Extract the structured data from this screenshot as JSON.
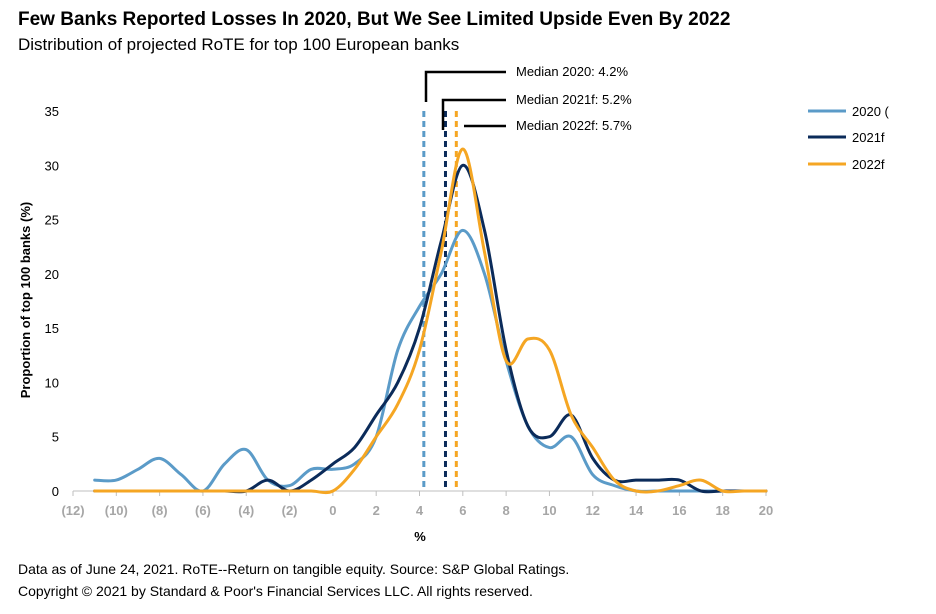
{
  "header": {
    "title": "Few Banks Reported Losses In 2020, But We See Limited Upside Even By 2022",
    "subtitle": "Distribution of projected RoTE for top 100 European banks"
  },
  "footer": {
    "note": "Data as of June 24, 2021. RoTE--Return on tangible equity. Source: S&P Global Ratings.",
    "copyright": "Copyright © 2021 by Standard & Poor's Financial Services LLC. All rights reserved."
  },
  "chart_data": {
    "type": "line",
    "title": "Few Banks Reported Losses In 2020, But We See Limited Upside Even By 2022",
    "subtitle": "Distribution of projected RoTE for top 100 European banks",
    "xlabel": "%",
    "ylabel": "Proportion of top 100 banks (%)",
    "xlim": [
      -12,
      20
    ],
    "ylim": [
      0,
      35
    ],
    "grid": false,
    "legend_position": "right",
    "x_ticks": [
      -12,
      -10,
      -8,
      -6,
      -4,
      -2,
      0,
      2,
      4,
      6,
      8,
      10,
      12,
      14,
      16,
      18,
      20
    ],
    "x_tick_labels": [
      "(12)",
      "(10)",
      "(8)",
      "(6)",
      "(4)",
      "(2)",
      "0",
      "2",
      "4",
      "6",
      "8",
      "10",
      "12",
      "14",
      "16",
      "18",
      "20"
    ],
    "y_ticks": [
      0,
      5,
      10,
      15,
      20,
      25,
      30,
      35
    ],
    "y_tick_labels": [
      "0",
      "5",
      "10",
      "15",
      "20",
      "25",
      "30",
      "35"
    ],
    "series": [
      {
        "name": "2020 (",
        "color": "#5b9bc8",
        "points": [
          [
            -11,
            1
          ],
          [
            -10,
            1
          ],
          [
            -9,
            2
          ],
          [
            -8,
            3
          ],
          [
            -7,
            1.5
          ],
          [
            -6,
            0
          ],
          [
            -5,
            2.5
          ],
          [
            -4,
            3.8
          ],
          [
            -3,
            1
          ],
          [
            -2,
            0.5
          ],
          [
            -1,
            2
          ],
          [
            0,
            2
          ],
          [
            1,
            2.5
          ],
          [
            2,
            5
          ],
          [
            3,
            13
          ],
          [
            4,
            17
          ],
          [
            5,
            20
          ],
          [
            6,
            24
          ],
          [
            7,
            20
          ],
          [
            8,
            12
          ],
          [
            9,
            6
          ],
          [
            10,
            4
          ],
          [
            11,
            5
          ],
          [
            12,
            1.5
          ],
          [
            13,
            0.5
          ],
          [
            14,
            0
          ],
          [
            15,
            0
          ],
          [
            16,
            0
          ],
          [
            17,
            0
          ],
          [
            18,
            0
          ],
          [
            19,
            0
          ],
          [
            20,
            0
          ]
        ]
      },
      {
        "name": "2021f",
        "color": "#0b2b5a",
        "points": [
          [
            -11,
            0
          ],
          [
            -10,
            0
          ],
          [
            -9,
            0
          ],
          [
            -8,
            0
          ],
          [
            -7,
            0
          ],
          [
            -6,
            0
          ],
          [
            -5,
            0
          ],
          [
            -4,
            0
          ],
          [
            -3,
            1
          ],
          [
            -2,
            0
          ],
          [
            -1,
            1
          ],
          [
            0,
            2.5
          ],
          [
            1,
            4
          ],
          [
            2,
            7
          ],
          [
            3,
            10
          ],
          [
            4,
            15
          ],
          [
            5,
            23
          ],
          [
            6,
            30
          ],
          [
            7,
            24
          ],
          [
            8,
            13
          ],
          [
            9,
            6
          ],
          [
            10,
            5
          ],
          [
            11,
            7
          ],
          [
            12,
            3
          ],
          [
            13,
            1
          ],
          [
            14,
            1
          ],
          [
            15,
            1
          ],
          [
            16,
            1
          ],
          [
            17,
            0
          ],
          [
            18,
            0
          ],
          [
            19,
            0
          ],
          [
            20,
            0
          ]
        ]
      },
      {
        "name": "2022f",
        "color": "#f5a623",
        "points": [
          [
            -11,
            0
          ],
          [
            -10,
            0
          ],
          [
            -9,
            0
          ],
          [
            -8,
            0
          ],
          [
            -7,
            0
          ],
          [
            -6,
            0
          ],
          [
            -5,
            0
          ],
          [
            -4,
            0
          ],
          [
            -3,
            0
          ],
          [
            -2,
            0
          ],
          [
            -1,
            0
          ],
          [
            0,
            0
          ],
          [
            1,
            2
          ],
          [
            2,
            5
          ],
          [
            3,
            8
          ],
          [
            4,
            13
          ],
          [
            5,
            22
          ],
          [
            6,
            31.5
          ],
          [
            7,
            22
          ],
          [
            8,
            12
          ],
          [
            9,
            14
          ],
          [
            10,
            13
          ],
          [
            11,
            7
          ],
          [
            12,
            4
          ],
          [
            13,
            1
          ],
          [
            14,
            0
          ],
          [
            15,
            0
          ],
          [
            16,
            0.5
          ],
          [
            17,
            1
          ],
          [
            18,
            0
          ],
          [
            19,
            0
          ],
          [
            20,
            0
          ]
        ]
      }
    ],
    "medians": [
      {
        "label": "Median 2020: 4.2%",
        "value": 4.2,
        "color": "#5b9bc8"
      },
      {
        "label": "Median 2021f: 5.2%",
        "value": 5.2,
        "color": "#0b2b5a"
      },
      {
        "label": "Median 2022f: 5.7%",
        "value": 5.7,
        "color": "#f5a623"
      }
    ]
  }
}
